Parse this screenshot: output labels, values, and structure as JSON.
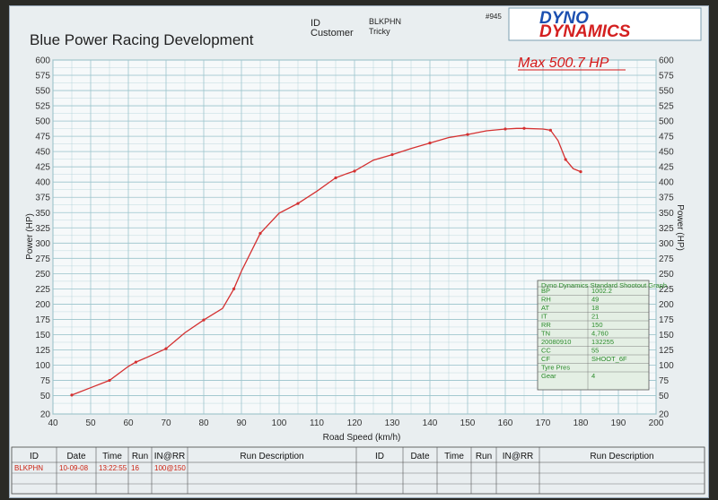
{
  "header": {
    "company": "Blue Power Racing Development",
    "id_label": "ID",
    "customer_label": "Customer",
    "id_value": "BLKPHN",
    "customer_value": "Tricky",
    "sheet_no": "#945",
    "logo_top": "DYNO",
    "logo_bottom": "DYNAMICS"
  },
  "max_label": "Max 500.7 HP",
  "colors": {
    "curve": "#d43030",
    "grid": "#9cc4cc",
    "max_text": "#d41818"
  },
  "chart_data": {
    "type": "line",
    "title": "",
    "xlabel": "Road Speed (km/h)",
    "ylabel": "Power (HP)",
    "ylabel_right": "Power (HP)",
    "xlim": [
      40,
      200
    ],
    "ylim": [
      20,
      600
    ],
    "x_ticks": [
      "40",
      "50",
      "60",
      "70",
      "80",
      "90",
      "100",
      "110",
      "120",
      "130",
      "140",
      "150",
      "160",
      "170",
      "180",
      "190",
      "200"
    ],
    "y_ticks": [
      "20",
      "50",
      "75",
      "100",
      "125",
      "150",
      "175",
      "200",
      "225",
      "250",
      "275",
      "300",
      "325",
      "350",
      "375",
      "400",
      "425",
      "450",
      "475",
      "500",
      "525",
      "550",
      "575",
      "600"
    ],
    "grid": true,
    "series": [
      {
        "x": [
          45,
          50,
          55,
          60,
          62,
          65,
          70,
          75,
          80,
          85,
          88,
          90,
          95,
          100,
          105,
          110,
          115,
          118,
          120,
          125,
          130,
          135,
          140,
          145,
          150,
          155,
          160,
          163,
          165,
          170,
          172,
          174,
          176,
          178,
          180
        ],
        "y": [
          51,
          63,
          75,
          98,
          105,
          113,
          127,
          153,
          174,
          193,
          225,
          254,
          316,
          349,
          365,
          385,
          407,
          414,
          418,
          436,
          445,
          455,
          464,
          473,
          478,
          484,
          487,
          488,
          488,
          487,
          485,
          468,
          437,
          422,
          417
        ]
      }
    ]
  },
  "legend_box": {
    "title": "Dyno Dynamics Standard Shootout Graph",
    "rows": [
      {
        "k": "BP",
        "v": "1002.2"
      },
      {
        "k": "RH",
        "v": "49"
      },
      {
        "k": "AT",
        "v": "18"
      },
      {
        "k": "IT",
        "v": "21"
      },
      {
        "k": "RR",
        "v": "150"
      },
      {
        "k": "TN",
        "v": "4,760"
      },
      {
        "k": "20080910",
        "v": "132255"
      },
      {
        "k": "CC",
        "v": "55"
      },
      {
        "k": "CF",
        "v": "SHOOT_6F"
      },
      {
        "k": "Tyre Pres",
        "v": ""
      },
      {
        "k": "Gear",
        "v": "4"
      }
    ]
  },
  "run_table": {
    "headers": [
      "ID",
      "Date",
      "Time",
      "Run",
      "IN@RR",
      "Run Description",
      "ID",
      "Date",
      "Time",
      "Run",
      "IN@RR",
      "Run Description"
    ],
    "row": [
      "BLKPHN",
      "10-09-08",
      "13:22:55",
      "16",
      "100@150",
      "",
      "",
      "",
      "",
      "",
      "",
      ""
    ]
  }
}
